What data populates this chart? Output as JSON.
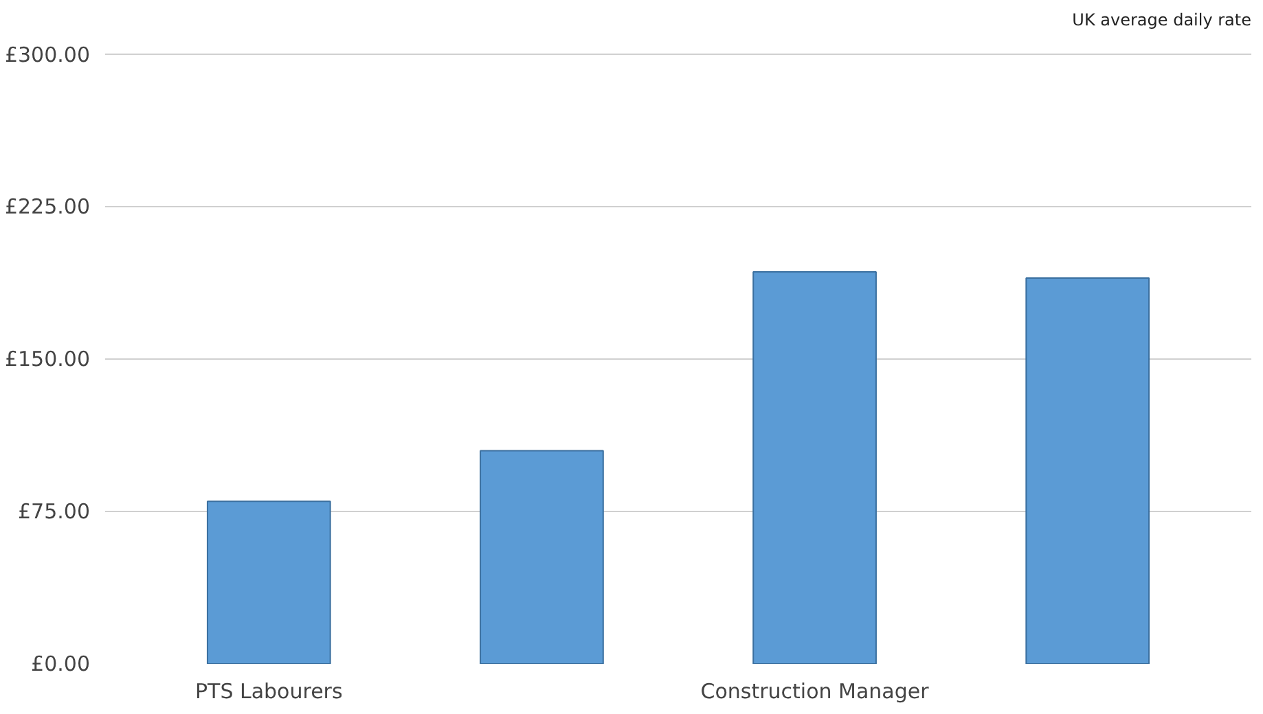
{
  "chart_data": {
    "type": "bar",
    "title": "UK average daily rate",
    "categories": [
      "PTS Labourers",
      null,
      "Construction Manager",
      null
    ],
    "values": [
      80,
      105,
      193,
      190
    ],
    "color": "#5b9bd5",
    "ylim": [
      0,
      300
    ],
    "yticks": [
      {
        "value": 0,
        "label": "£0.00"
      },
      {
        "value": 75,
        "label": "£75.00"
      },
      {
        "value": 150,
        "label": "£150.00"
      },
      {
        "value": 225,
        "label": "£225.00"
      },
      {
        "value": 300,
        "label": "£300.00"
      }
    ],
    "grid": "y"
  }
}
